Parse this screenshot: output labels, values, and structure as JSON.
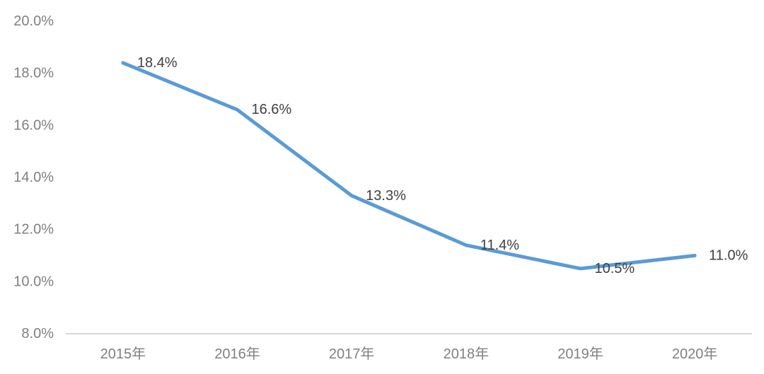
{
  "chart_data": {
    "type": "line",
    "title": "",
    "xlabel": "",
    "ylabel": "",
    "categories": [
      "2015年",
      "2016年",
      "2017年",
      "2018年",
      "2019年",
      "2020年"
    ],
    "values": [
      18.4,
      16.6,
      13.3,
      11.4,
      10.5,
      11.0
    ],
    "data_labels": [
      "18.4%",
      "16.6%",
      "13.3%",
      "11.4%",
      "10.5%",
      "11.0%"
    ],
    "y_ticks": [
      {
        "label": "20.0%",
        "value": 20
      },
      {
        "label": "18.0%",
        "value": 18
      },
      {
        "label": "16.0%",
        "value": 16
      },
      {
        "label": "14.0%",
        "value": 14
      },
      {
        "label": "12.0%",
        "value": 12
      },
      {
        "label": "10.0%",
        "value": 10
      },
      {
        "label": "8.0%",
        "value": 8
      }
    ],
    "ylim": [
      8,
      20
    ],
    "grid": false,
    "legend": false,
    "colors": {
      "line": "#5B9BD5",
      "data_label": "#404040",
      "axis_label": "#808080",
      "axis_line": "#D9D9D9",
      "background": "#FFFFFF"
    }
  }
}
